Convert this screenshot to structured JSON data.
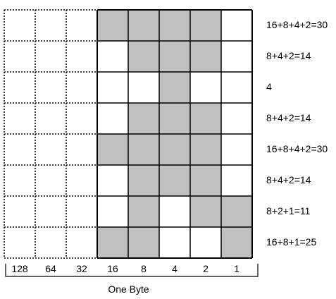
{
  "colors": {
    "filled": "#c0c0c0",
    "empty": "#ffffff",
    "line": "#000000"
  },
  "bit_weights": [
    "128",
    "64",
    "32",
    "16",
    "8",
    "4",
    "2",
    "1"
  ],
  "rows": [
    {
      "bits": [
        0,
        0,
        0,
        1,
        1,
        1,
        1,
        0
      ],
      "sum_label": "16+8+4+2=30"
    },
    {
      "bits": [
        0,
        0,
        0,
        0,
        1,
        1,
        1,
        0
      ],
      "sum_label": "8+4+2=14"
    },
    {
      "bits": [
        0,
        0,
        0,
        0,
        0,
        1,
        0,
        0
      ],
      "sum_label": "4"
    },
    {
      "bits": [
        0,
        0,
        0,
        0,
        1,
        1,
        1,
        0
      ],
      "sum_label": "8+4+2=14"
    },
    {
      "bits": [
        0,
        0,
        0,
        1,
        1,
        1,
        1,
        0
      ],
      "sum_label": "16+8+4+2=30"
    },
    {
      "bits": [
        0,
        0,
        0,
        0,
        1,
        1,
        1,
        0
      ],
      "sum_label": "8+4+2=14"
    },
    {
      "bits": [
        0,
        0,
        0,
        0,
        1,
        0,
        1,
        1
      ],
      "sum_label": "8+2+1=11"
    },
    {
      "bits": [
        0,
        0,
        0,
        1,
        1,
        0,
        0,
        1
      ],
      "sum_label": "16+8+1=25"
    }
  ],
  "dotted_columns_note": "",
  "byte_caption": "One Byte"
}
